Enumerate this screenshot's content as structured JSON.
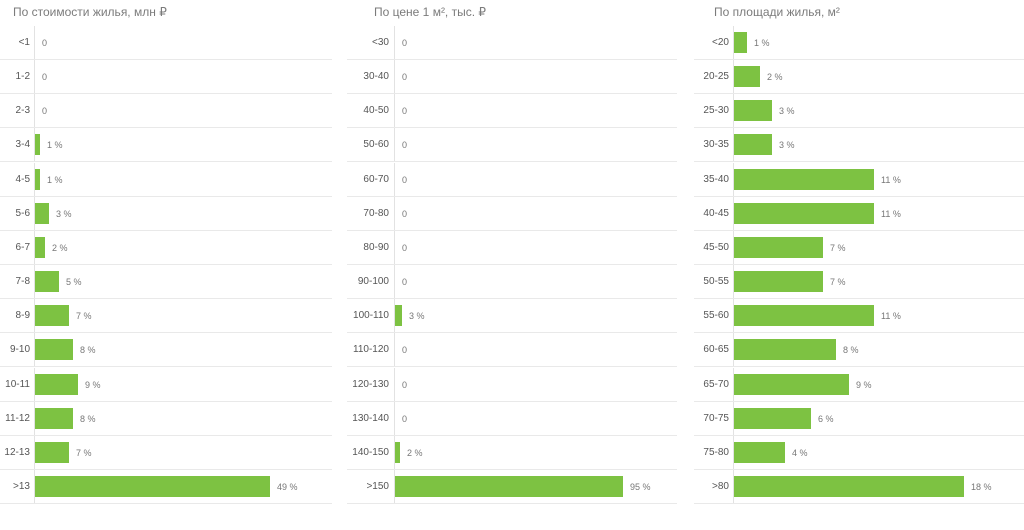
{
  "chart_data": [
    {
      "type": "bar",
      "orientation": "horizontal",
      "title": "По стоимости жилья, млн ₽",
      "categories": [
        "<1",
        "1-2",
        "2-3",
        "3-4",
        "4-5",
        "5-6",
        "6-7",
        "7-8",
        "8-9",
        "9-10",
        "10-11",
        "11-12",
        "12-13",
        ">13"
      ],
      "values": [
        0,
        0,
        0,
        1,
        1,
        3,
        2,
        5,
        7,
        8,
        9,
        8,
        7,
        49
      ],
      "value_labels": [
        "0",
        "0",
        "0",
        "1 %",
        "1 %",
        "3 %",
        "2 %",
        "5 %",
        "7 %",
        "8 %",
        "9 %",
        "8 %",
        "7 %",
        "49 %"
      ],
      "xlim": [
        0,
        100
      ],
      "color": "#7dc242"
    },
    {
      "type": "bar",
      "orientation": "horizontal",
      "title": "По цене 1 м², тыс. ₽",
      "categories": [
        "<30",
        "30-40",
        "40-50",
        "50-60",
        "60-70",
        "70-80",
        "80-90",
        "90-100",
        "100-110",
        "110-120",
        "120-130",
        "130-140",
        "140-150",
        ">150"
      ],
      "values": [
        0,
        0,
        0,
        0,
        0,
        0,
        0,
        0,
        3,
        0,
        0,
        0,
        2,
        95
      ],
      "value_labels": [
        "0",
        "0",
        "0",
        "0",
        "0",
        "0",
        "0",
        "0",
        "3 %",
        "0",
        "0",
        "0",
        "2 %",
        "95 %"
      ],
      "xlim": [
        0,
        100
      ],
      "color": "#7dc242"
    },
    {
      "type": "bar",
      "orientation": "horizontal",
      "title": "По площади жилья, м²",
      "categories": [
        "<20",
        "20-25",
        "25-30",
        "30-35",
        "35-40",
        "40-45",
        "45-50",
        "50-55",
        "55-60",
        "60-65",
        "65-70",
        "70-75",
        "75-80",
        ">80"
      ],
      "values": [
        1,
        2,
        3,
        3,
        11,
        11,
        7,
        7,
        11,
        8,
        9,
        6,
        4,
        18
      ],
      "value_labels": [
        "1 %",
        "2 %",
        "3 %",
        "3 %",
        "11 %",
        "11 %",
        "7 %",
        "7 %",
        "11 %",
        "8 %",
        "9 %",
        "6 %",
        "4 %",
        "18 %"
      ],
      "xlim": [
        0,
        20
      ],
      "color": "#7dc242"
    }
  ]
}
